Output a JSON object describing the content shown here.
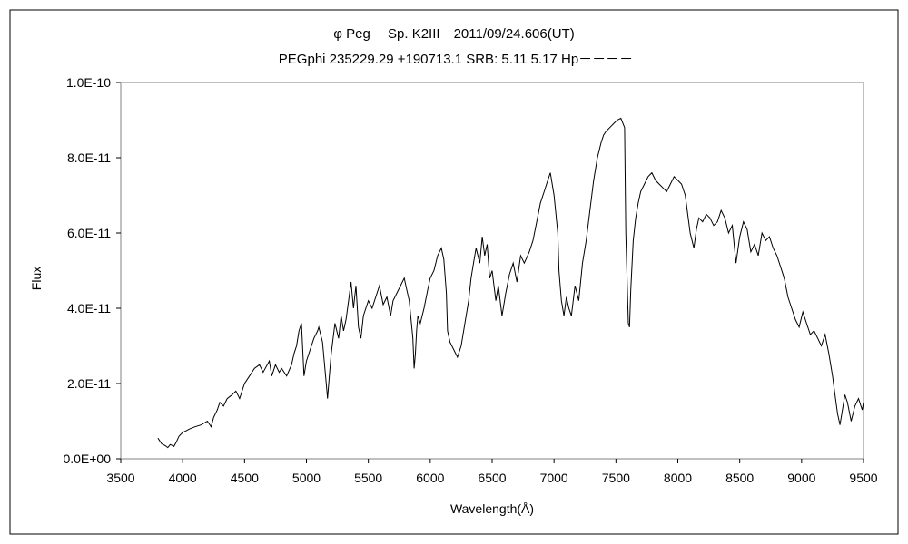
{
  "chart_data": {
    "type": "line",
    "title": "φ Peg　 Sp. K2III　2011/09/24.606(UT)",
    "subtitle": "PEGphi 235229.29 +190713.1 SRB: 5.11 5.17 Hp－－－－",
    "xlabel": "Wavelength(Å)",
    "ylabel": "Flux",
    "xlim": [
      3500,
      9500
    ],
    "ylim": [
      0,
      1e-10
    ],
    "x_ticks": [
      "3500",
      "4000",
      "4500",
      "5000",
      "5500",
      "6000",
      "6500",
      "7000",
      "7500",
      "8000",
      "8500",
      "9000",
      "9500"
    ],
    "y_ticks": [
      "0.0E+00",
      "2.0E-11",
      "4.0E-11",
      "6.0E-11",
      "8.0E-11",
      "1.0E-10"
    ],
    "grid": false,
    "legend": "none",
    "line_color": "#000000",
    "series": [
      {
        "x": [
          3800,
          3830,
          3860,
          3880,
          3900,
          3930,
          3950,
          3970,
          4000,
          4030,
          4060,
          4100,
          4150,
          4200,
          4230,
          4250,
          4280,
          4300,
          4330,
          4360,
          4400,
          4430,
          4460,
          4500,
          4540,
          4580,
          4620,
          4650,
          4700,
          4720,
          4750,
          4780,
          4800,
          4840,
          4880,
          4900,
          4920,
          4940,
          4960,
          4980,
          5000,
          5030,
          5060,
          5090,
          5100,
          5130,
          5160,
          5170,
          5185,
          5200,
          5230,
          5260,
          5280,
          5300,
          5320,
          5340,
          5360,
          5380,
          5400,
          5420,
          5440,
          5460,
          5480,
          5500,
          5530,
          5560,
          5590,
          5620,
          5650,
          5680,
          5700,
          5730,
          5760,
          5790,
          5810,
          5830,
          5860,
          5870,
          5880,
          5890,
          5900,
          5920,
          5950,
          5980,
          6000,
          6030,
          6060,
          6090,
          6110,
          6130,
          6140,
          6160,
          6190,
          6220,
          6250,
          6280,
          6310,
          6330,
          6350,
          6370,
          6400,
          6420,
          6440,
          6460,
          6480,
          6500,
          6530,
          6550,
          6580,
          6610,
          6640,
          6670,
          6700,
          6730,
          6760,
          6800,
          6830,
          6860,
          6890,
          6920,
          6950,
          6970,
          7000,
          7030,
          7040,
          7060,
          7080,
          7100,
          7120,
          7140,
          7170,
          7200,
          7230,
          7260,
          7290,
          7320,
          7350,
          7380,
          7400,
          7420,
          7450,
          7480,
          7510,
          7540,
          7570,
          7580,
          7600,
          7610,
          7620,
          7640,
          7660,
          7680,
          7700,
          7730,
          7760,
          7790,
          7820,
          7850,
          7880,
          7910,
          7940,
          7970,
          8000,
          8030,
          8060,
          8080,
          8100,
          8130,
          8150,
          8170,
          8200,
          8230,
          8260,
          8290,
          8320,
          8350,
          8380,
          8410,
          8440,
          8470,
          8500,
          8530,
          8560,
          8590,
          8620,
          8650,
          8680,
          8710,
          8740,
          8770,
          8800,
          8830,
          8860,
          8890,
          8920,
          8950,
          8980,
          9010,
          9040,
          9070,
          9100,
          9130,
          9160,
          9190,
          9220,
          9250,
          9270,
          9290,
          9310,
          9330,
          9350,
          9370,
          9400,
          9430,
          9460,
          9490,
          9500
        ],
        "y": [
          5.5e-12,
          4e-12,
          3.5e-12,
          3e-12,
          3.8e-12,
          3.3e-12,
          4.5e-12,
          6e-12,
          7e-12,
          7.5e-12,
          8e-12,
          8.5e-12,
          9e-12,
          1e-11,
          8.5e-12,
          1.1e-11,
          1.3e-11,
          1.5e-11,
          1.4e-11,
          1.6e-11,
          1.7e-11,
          1.8e-11,
          1.6e-11,
          2e-11,
          2.2e-11,
          2.4e-11,
          2.5e-11,
          2.3e-11,
          2.6e-11,
          2.2e-11,
          2.5e-11,
          2.3e-11,
          2.4e-11,
          2.2e-11,
          2.5e-11,
          2.8e-11,
          3e-11,
          3.4e-11,
          3.6e-11,
          2.2e-11,
          2.6e-11,
          2.9e-11,
          3.2e-11,
          3.4e-11,
          3.5e-11,
          3.1e-11,
          2e-11,
          1.6e-11,
          2.2e-11,
          2.8e-11,
          3.6e-11,
          3.2e-11,
          3.8e-11,
          3.4e-11,
          3.7e-11,
          4.2e-11,
          4.7e-11,
          4e-11,
          4.6e-11,
          3.5e-11,
          3.2e-11,
          3.8e-11,
          4e-11,
          4.2e-11,
          4e-11,
          4.3e-11,
          4.6e-11,
          4.1e-11,
          4.3e-11,
          3.8e-11,
          4.2e-11,
          4.4e-11,
          4.6e-11,
          4.8e-11,
          4.5e-11,
          4.2e-11,
          3.2e-11,
          2.4e-11,
          2.8e-11,
          3.4e-11,
          3.8e-11,
          3.6e-11,
          4e-11,
          4.5e-11,
          4.8e-11,
          5e-11,
          5.4e-11,
          5.6e-11,
          5.3e-11,
          4.4e-11,
          3.4e-11,
          3.1e-11,
          2.9e-11,
          2.7e-11,
          3e-11,
          3.6e-11,
          4.2e-11,
          4.8e-11,
          5.2e-11,
          5.6e-11,
          5.2e-11,
          5.9e-11,
          5.4e-11,
          5.7e-11,
          4.8e-11,
          5e-11,
          4.2e-11,
          4.6e-11,
          3.8e-11,
          4.4e-11,
          4.9e-11,
          5.2e-11,
          4.7e-11,
          5.4e-11,
          5.2e-11,
          5.5e-11,
          5.8e-11,
          6.3e-11,
          6.8e-11,
          7.1e-11,
          7.4e-11,
          7.6e-11,
          7e-11,
          6e-11,
          5e-11,
          4.2e-11,
          3.8e-11,
          4.3e-11,
          4e-11,
          3.8e-11,
          4.6e-11,
          4.2e-11,
          5.2e-11,
          5.8e-11,
          6.6e-11,
          7.4e-11,
          8e-11,
          8.4e-11,
          8.6e-11,
          8.7e-11,
          8.8e-11,
          8.9e-11,
          9e-11,
          9.05e-11,
          8.8e-11,
          6e-11,
          3.6e-11,
          3.5e-11,
          4.5e-11,
          5.8e-11,
          6.4e-11,
          6.8e-11,
          7.1e-11,
          7.3e-11,
          7.5e-11,
          7.6e-11,
          7.4e-11,
          7.3e-11,
          7.2e-11,
          7.1e-11,
          7.3e-11,
          7.5e-11,
          7.4e-11,
          7.3e-11,
          7e-11,
          6.5e-11,
          6e-11,
          5.6e-11,
          6.1e-11,
          6.4e-11,
          6.3e-11,
          6.5e-11,
          6.4e-11,
          6.2e-11,
          6.3e-11,
          6.6e-11,
          6.4e-11,
          6e-11,
          6.2e-11,
          5.2e-11,
          5.9e-11,
          6.3e-11,
          6.1e-11,
          5.5e-11,
          5.7e-11,
          5.4e-11,
          6e-11,
          5.8e-11,
          5.9e-11,
          5.6e-11,
          5.4e-11,
          5.1e-11,
          4.8e-11,
          4.3e-11,
          4e-11,
          3.7e-11,
          3.5e-11,
          3.9e-11,
          3.6e-11,
          3.3e-11,
          3.4e-11,
          3.2e-11,
          3e-11,
          3.3e-11,
          2.8e-11,
          2.2e-11,
          1.7e-11,
          1.2e-11,
          9e-12,
          1.3e-11,
          1.7e-11,
          1.5e-11,
          1e-11,
          1.4e-11,
          1.6e-11,
          1.3e-11,
          1.5e-11
        ]
      }
    ]
  }
}
